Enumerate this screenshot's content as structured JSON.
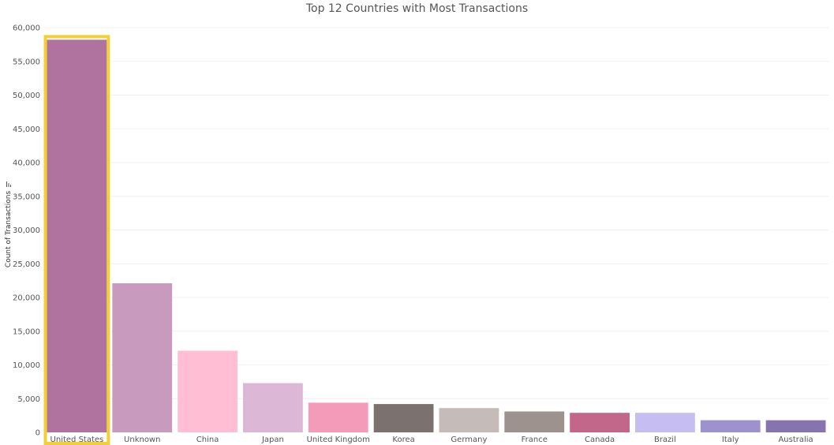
{
  "chart_data": {
    "type": "bar",
    "title": "Top 12 Countries with Most Transactions",
    "xlabel": "",
    "ylabel": "Count of Transactions",
    "categories": [
      "United States",
      "Unknown",
      "China",
      "Japan",
      "United Kingdom",
      "Korea",
      "Germany",
      "France",
      "Canada",
      "Brazil",
      "Italy",
      "Australia"
    ],
    "values": [
      58200,
      22100,
      12100,
      7300,
      4400,
      4200,
      3600,
      3100,
      2900,
      2900,
      1800,
      1800
    ],
    "colors": [
      "#b0739f",
      "#c89abd",
      "#ffbed3",
      "#dcb7d6",
      "#f49bb9",
      "#7b716e",
      "#c5bcba",
      "#9e928f",
      "#c2668a",
      "#c6bdf0",
      "#9d92cc",
      "#8674af"
    ],
    "ylim": [
      0,
      60000
    ],
    "yticks": [
      0,
      5000,
      10000,
      15000,
      20000,
      25000,
      30000,
      35000,
      40000,
      45000,
      50000,
      55000,
      60000
    ],
    "ytick_labels": [
      "0",
      "5,000",
      "10,000",
      "15,000",
      "20,000",
      "25,000",
      "30,000",
      "35,000",
      "40,000",
      "45,000",
      "50,000",
      "55,000",
      "60,000"
    ],
    "grid": true,
    "highlight_category": "United States",
    "highlight_color": "#f2d034"
  },
  "icons": {
    "sort_indicator": "sort-icon"
  }
}
